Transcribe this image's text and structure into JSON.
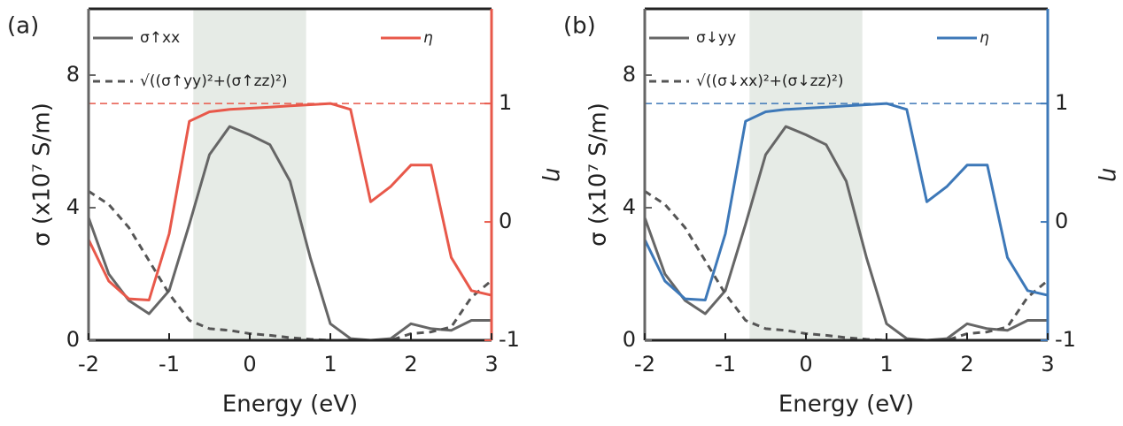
{
  "chart_data": [
    {
      "type": "line",
      "label": "(a)",
      "x_label": "Energy (eV)",
      "y_label": "σ (x10⁷ S/m)",
      "y2_label": "η",
      "x": [
        -2,
        -1.75,
        -1.5,
        -1.25,
        -1,
        -0.75,
        -0.5,
        -0.25,
        0,
        0.25,
        0.5,
        0.75,
        1,
        1.25,
        1.5,
        1.75,
        2,
        2.25,
        2.5,
        2.75,
        3
      ],
      "xlim": [
        -2,
        3
      ],
      "xticks": [
        -2,
        -1,
        0,
        1,
        2,
        3
      ],
      "ylim": [
        0,
        10
      ],
      "yticks": [
        0,
        4,
        8
      ],
      "y2lim": [
        -1,
        1.8
      ],
      "y2ticks": [
        -1,
        0,
        1
      ],
      "y2_color": "#e8584a",
      "shade": [
        -0.7,
        0.7
      ],
      "shade_color": "#e6ebe6",
      "hline_y2": 1,
      "series": [
        {
          "name": "σ↑xx",
          "color": "#666666",
          "dash": false,
          "values": [
            3.7,
            2.0,
            1.2,
            0.8,
            1.5,
            3.5,
            5.6,
            6.45,
            6.2,
            5.9,
            4.8,
            2.5,
            0.5,
            0.05,
            0.0,
            0.05,
            0.5,
            0.35,
            0.3,
            0.6,
            0.6
          ]
        },
        {
          "name": "√((σ↑yy)²+(σ↑zz)²)",
          "color": "#555555",
          "dash": true,
          "values": [
            4.5,
            4.1,
            3.4,
            2.4,
            1.4,
            0.6,
            0.35,
            0.3,
            0.2,
            0.15,
            0.08,
            0.03,
            0,
            0,
            0,
            0,
            0.2,
            0.25,
            0.4,
            1.3,
            1.8
          ]
        },
        {
          "name": "η",
          "color": "#e8584a",
          "dash": false,
          "axis": "y2",
          "values": [
            -0.15,
            -0.5,
            -0.65,
            -0.66,
            -0.1,
            0.85,
            0.93,
            0.95,
            0.96,
            0.97,
            0.98,
            0.99,
            1.0,
            0.95,
            0.17,
            0.3,
            0.48,
            0.48,
            -0.3,
            -0.58,
            -0.62
          ]
        }
      ]
    },
    {
      "type": "line",
      "label": "(b)",
      "x_label": "Energy (eV)",
      "y_label": "σ (x10⁷ S/m)",
      "y2_label": "η",
      "x": [
        -2,
        -1.75,
        -1.5,
        -1.25,
        -1,
        -0.75,
        -0.5,
        -0.25,
        0,
        0.25,
        0.5,
        0.75,
        1,
        1.25,
        1.5,
        1.75,
        2,
        2.25,
        2.5,
        2.75,
        3
      ],
      "xlim": [
        -2,
        3
      ],
      "xticks": [
        -2,
        -1,
        0,
        1,
        2,
        3
      ],
      "ylim": [
        0,
        10
      ],
      "yticks": [
        0,
        4,
        8
      ],
      "y2lim": [
        -1,
        1.8
      ],
      "y2ticks": [
        -1,
        0,
        1
      ],
      "y2_color": "#3d78b8",
      "shade": [
        -0.7,
        0.7
      ],
      "shade_color": "#e6ebe6",
      "hline_y2": 1,
      "series": [
        {
          "name": "σ↓yy",
          "color": "#666666",
          "dash": false,
          "values": [
            3.7,
            2.0,
            1.2,
            0.8,
            1.5,
            3.5,
            5.6,
            6.45,
            6.2,
            5.9,
            4.8,
            2.5,
            0.5,
            0.05,
            0.0,
            0.05,
            0.5,
            0.35,
            0.3,
            0.6,
            0.6
          ]
        },
        {
          "name": "√((σ↓xx)²+(σ↓zz)²)",
          "color": "#555555",
          "dash": true,
          "values": [
            4.5,
            4.1,
            3.4,
            2.4,
            1.4,
            0.6,
            0.35,
            0.3,
            0.2,
            0.15,
            0.08,
            0.03,
            0,
            0,
            0,
            0,
            0.2,
            0.25,
            0.4,
            1.3,
            1.8
          ]
        },
        {
          "name": "η",
          "color": "#3d78b8",
          "dash": false,
          "axis": "y2",
          "values": [
            -0.15,
            -0.5,
            -0.65,
            -0.66,
            -0.1,
            0.85,
            0.93,
            0.95,
            0.96,
            0.97,
            0.98,
            0.99,
            1.0,
            0.95,
            0.17,
            0.3,
            0.48,
            0.48,
            -0.3,
            -0.58,
            -0.62
          ]
        }
      ]
    }
  ]
}
